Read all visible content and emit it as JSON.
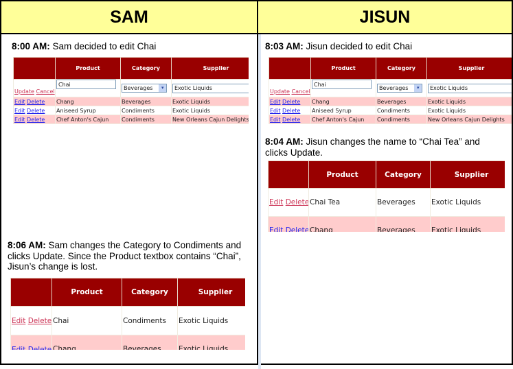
{
  "headers": {
    "sam": "SAM",
    "jisun": "JISUN"
  },
  "columns": [
    "",
    "Product",
    "Category",
    "Supplier"
  ],
  "links": {
    "edit": "Edit",
    "delete": "Delete",
    "update": "Update",
    "cancel": "Cancel"
  },
  "panels": {
    "sam_800": {
      "time": "8:00 AM:",
      "text": " Sam decided to edit Chai",
      "edit_row": {
        "product": "Chai",
        "category": "Beverages",
        "supplier": "Exotic Liquids"
      },
      "rows": [
        [
          "Chang",
          "Beverages",
          "Exotic Liquids"
        ],
        [
          "Aniseed Syrup",
          "Condiments",
          "Exotic Liquids"
        ],
        [
          "Chef Anton's Cajun",
          "Condiments",
          "New Orleans Cajun Delights"
        ]
      ]
    },
    "jisun_803": {
      "time": "8:03 AM:",
      "text": " Jisun decided to edit Chai",
      "edit_row": {
        "product": "Chai",
        "category": "Beverages",
        "supplier": "Exotic Liquids"
      },
      "rows": [
        [
          "Chang",
          "Beverages",
          "Exotic Liquids"
        ],
        [
          "Aniseed Syrup",
          "Condiments",
          "Exotic Liquids"
        ],
        [
          "Chef Anton's Cajun",
          "Condiments",
          "New Orleans Cajun Delights"
        ]
      ]
    },
    "jisun_804": {
      "time": "8:04 AM:",
      "text": " Jisun changes the name to “Chai Tea” and clicks Update.",
      "rows": [
        [
          "Chai Tea",
          "Beverages",
          "Exotic Liquids"
        ],
        [
          "Chang",
          "Beverages",
          "Exotic Liquids"
        ]
      ]
    },
    "sam_806": {
      "time": "8:06 AM:",
      "text": " Sam changes the Category to Condiments and clicks Update. Since the Product textbox contains “Chai”, Jisun’s change is lost.",
      "rows": [
        [
          "Chai",
          "Condiments",
          "Exotic Liquids"
        ],
        [
          "Chang",
          "Beverages",
          "Exotic Liquids"
        ]
      ]
    }
  },
  "colors": {
    "header_bg": "#ffff99",
    "grid_header": "#990000",
    "alt_row": "#ffcccc",
    "link_active": "#cc3355",
    "link": "#2222ee"
  }
}
